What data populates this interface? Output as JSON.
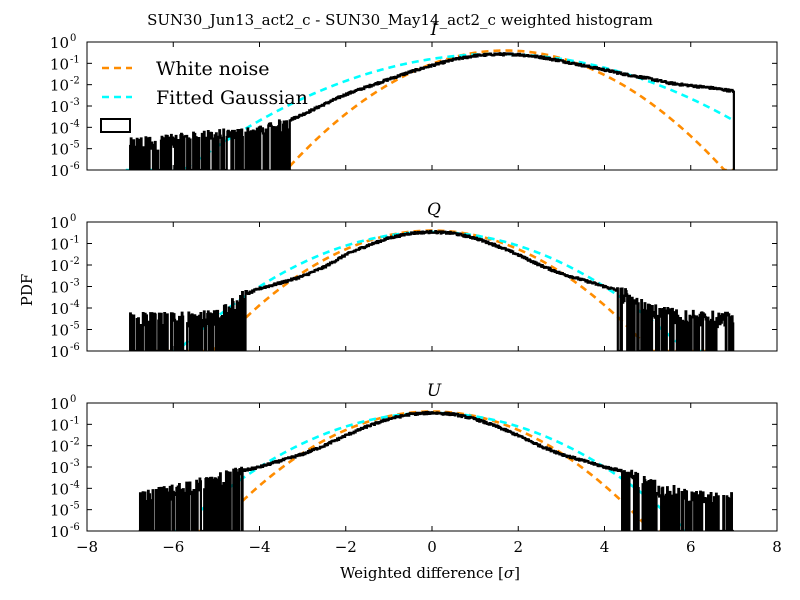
{
  "figure": {
    "title": "SUN30_Jun13_act2_c - SUN30_May14_act2_c weighted histogram",
    "ylabel": "PDF",
    "xlabel_text": "Weighted difference [",
    "xlabel_symbol": "σ",
    "xlabel_close": "]"
  },
  "legend": {
    "placement": "upper-left of first panel",
    "entries": [
      {
        "label": "White noise",
        "color": "#ff8c00",
        "style": "dashed"
      },
      {
        "label": "Fitted Gaussian",
        "color": "#00ffff",
        "style": "dashed"
      },
      {
        "label": "",
        "color": "#000000",
        "style": "histogram"
      }
    ]
  },
  "colors": {
    "histogram": "#000000",
    "white_noise": "#ff8c00",
    "fitted_gaussian": "#00ffff",
    "axes": "#000000",
    "background": "#ffffff"
  },
  "chart_data": [
    {
      "type": "line",
      "title": "I",
      "xlim": [
        -8,
        8
      ],
      "ylim": [
        1e-06,
        1
      ],
      "yscale": "log",
      "xticks": [
        -8,
        -6,
        -4,
        -2,
        0,
        2,
        4,
        6,
        8
      ],
      "xticklabels": [
        "−8",
        "−6",
        "−4",
        "−2",
        "0",
        "2",
        "4",
        "6",
        "8"
      ],
      "yticks": [
        1e-06,
        1e-05,
        0.0001,
        0.001,
        0.01,
        0.1,
        1
      ],
      "ytickexp": [
        "-6",
        "-5",
        "-4",
        "-3",
        "-2",
        "-1",
        "0"
      ],
      "ytickbase": "10",
      "show_xticklabels": false,
      "series": [
        {
          "name": "White noise",
          "kind": "gaussian",
          "mu": 1.7,
          "sigma": 1.0,
          "amp": 0.399,
          "x_min": -3.3,
          "x_max": 7.0
        },
        {
          "name": "Fitted Gaussian",
          "kind": "gaussian",
          "mu": 1.5,
          "sigma": 1.45,
          "amp": 0.275,
          "x_min": -7.1,
          "x_max": 7.0
        },
        {
          "name": "",
          "kind": "histogram",
          "x_min": -7.0,
          "x_max": 7.0,
          "envelope_x": [
            -7.0,
            -6.0,
            -5.0,
            -4.0,
            -3.5,
            -3.0,
            -2.5,
            -2.0,
            -1.5,
            -1.0,
            -0.5,
            0.0,
            0.5,
            1.0,
            1.5,
            2.0,
            2.5,
            3.0,
            3.5,
            4.0,
            4.5,
            5.0,
            5.5,
            6.0,
            6.5,
            7.0
          ],
          "envelope_y": [
            2e-05,
            3e-05,
            5e-05,
            7e-05,
            0.00015,
            0.0004,
            0.0012,
            0.0035,
            0.008,
            0.018,
            0.04,
            0.08,
            0.15,
            0.23,
            0.27,
            0.26,
            0.2,
            0.13,
            0.08,
            0.05,
            0.03,
            0.02,
            0.012,
            0.009,
            0.007,
            0.005
          ],
          "noisy_below_x": -3.3,
          "floor": 1e-06
        }
      ]
    },
    {
      "type": "line",
      "title": "Q",
      "xlim": [
        -8,
        8
      ],
      "ylim": [
        1e-06,
        1
      ],
      "yscale": "log",
      "xticks": [
        -8,
        -6,
        -4,
        -2,
        0,
        2,
        4,
        6,
        8
      ],
      "xticklabels": [
        "−8",
        "−6",
        "−4",
        "−2",
        "0",
        "2",
        "4",
        "6",
        "8"
      ],
      "yticks": [
        1e-06,
        1e-05,
        0.0001,
        0.001,
        0.01,
        0.1,
        1
      ],
      "ytickexp": [
        "-6",
        "-5",
        "-4",
        "-3",
        "-2",
        "-1",
        "0"
      ],
      "ytickbase": "10",
      "show_xticklabels": false,
      "series": [
        {
          "name": "White noise",
          "kind": "gaussian",
          "mu": 0.0,
          "sigma": 1.0,
          "amp": 0.399,
          "x_min": -6.5,
          "x_max": 6.5
        },
        {
          "name": "Fitted Gaussian",
          "kind": "gaussian",
          "mu": 0.0,
          "sigma": 1.17,
          "amp": 0.34,
          "x_min": -6.0,
          "x_max": 6.5
        },
        {
          "name": "",
          "kind": "histogram",
          "x_min": -7.0,
          "x_max": 7.0,
          "envelope_x": [
            -7.0,
            -6.0,
            -5.0,
            -4.5,
            -4.0,
            -3.5,
            -3.0,
            -2.5,
            -2.0,
            -1.5,
            -1.0,
            -0.5,
            0.0,
            0.5,
            1.0,
            1.5,
            2.0,
            2.5,
            3.0,
            3.5,
            4.0,
            4.5,
            5.0,
            6.0,
            7.0
          ],
          "envelope_y": [
            4e-05,
            4e-05,
            5e-05,
            0.0003,
            0.0008,
            0.0015,
            0.003,
            0.008,
            0.03,
            0.08,
            0.18,
            0.3,
            0.35,
            0.3,
            0.18,
            0.08,
            0.03,
            0.01,
            0.004,
            0.002,
            0.001,
            0.0005,
            0.0001,
            5e-05,
            4e-05
          ],
          "noisy_outside_abs_x": 4.3,
          "floor": 1e-06
        }
      ]
    },
    {
      "type": "line",
      "title": "U",
      "xlim": [
        -8,
        8
      ],
      "ylim": [
        1e-06,
        1
      ],
      "yscale": "log",
      "xticks": [
        -8,
        -6,
        -4,
        -2,
        0,
        2,
        4,
        6,
        8
      ],
      "xticklabels": [
        "−8",
        "−6",
        "−4",
        "−2",
        "0",
        "2",
        "4",
        "6",
        "8"
      ],
      "yticks": [
        1e-06,
        1e-05,
        0.0001,
        0.001,
        0.01,
        0.1,
        1
      ],
      "ytickexp": [
        "-6",
        "-5",
        "-4",
        "-3",
        "-2",
        "-1",
        "0"
      ],
      "ytickbase": "10",
      "show_xticklabels": true,
      "series": [
        {
          "name": "White noise",
          "kind": "gaussian",
          "mu": 0.0,
          "sigma": 1.0,
          "amp": 0.399,
          "x_min": -5.5,
          "x_max": 5.5
        },
        {
          "name": "Fitted Gaussian",
          "kind": "gaussian",
          "mu": 0.0,
          "sigma": 1.17,
          "amp": 0.34,
          "x_min": -6.0,
          "x_max": 6.0
        },
        {
          "name": "",
          "kind": "histogram",
          "x_min": -6.8,
          "x_max": 7.0,
          "envelope_x": [
            -6.8,
            -6.0,
            -5.0,
            -4.5,
            -4.0,
            -3.5,
            -3.0,
            -2.5,
            -2.0,
            -1.5,
            -1.0,
            -0.5,
            0.0,
            0.5,
            1.0,
            1.5,
            2.0,
            2.5,
            3.0,
            3.5,
            4.0,
            4.5,
            5.0,
            6.0,
            7.0
          ],
          "envelope_y": [
            4e-05,
            0.0001,
            0.0003,
            0.0006,
            0.001,
            0.002,
            0.004,
            0.01,
            0.03,
            0.08,
            0.18,
            0.3,
            0.35,
            0.3,
            0.18,
            0.08,
            0.03,
            0.01,
            0.004,
            0.002,
            0.001,
            0.0006,
            0.0002,
            5e-05,
            4e-05
          ],
          "noisy_outside_abs_x": 4.4,
          "floor": 1e-06
        }
      ]
    }
  ]
}
